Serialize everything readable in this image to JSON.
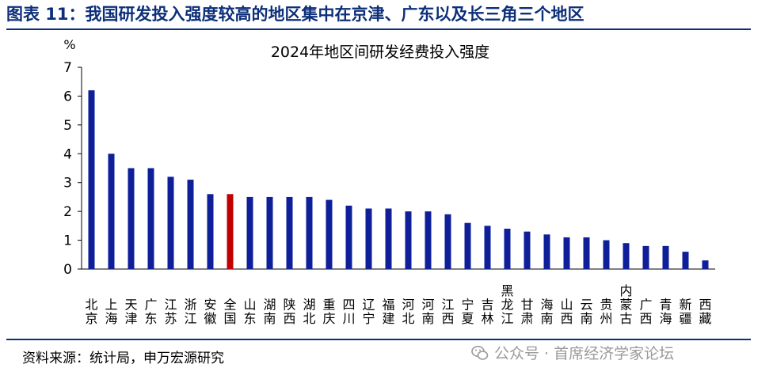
{
  "figure_title": "图表 11：我国研发投入强度较高的地区集中在京津、广东以及长三角三个地区",
  "source": "资料来源：统计局，申万宏源研究",
  "watermark": "公众号 · 首席经济学家论坛",
  "watermark_icon": "wechat-icon",
  "colors": {
    "bar": "#0e1f99",
    "highlight": "#c00000",
    "title_blue": "#0d2f7a"
  },
  "chart_data": {
    "type": "bar",
    "title": "2024年地区间研发经费投入强度",
    "ylabel": "%",
    "ylim": [
      0,
      7
    ],
    "yticks": [
      0,
      1,
      2,
      3,
      4,
      5,
      6,
      7
    ],
    "grid": false,
    "highlight_category": "全国",
    "categories": [
      "北京",
      "上海",
      "天津",
      "广东",
      "江苏",
      "浙江",
      "安徽",
      "全国",
      "山东",
      "湖南",
      "陕西",
      "湖北",
      "重庆",
      "四川",
      "辽宁",
      "福建",
      "河北",
      "河南",
      "江西",
      "宁夏",
      "吉林",
      "黑龙江",
      "甘肃",
      "海南",
      "山西",
      "云南",
      "贵州",
      "内蒙古",
      "广西",
      "青海",
      "新疆",
      "西藏"
    ],
    "values": [
      6.2,
      4.0,
      3.5,
      3.5,
      3.2,
      3.1,
      2.6,
      2.6,
      2.5,
      2.5,
      2.5,
      2.5,
      2.4,
      2.2,
      2.1,
      2.1,
      2.0,
      2.0,
      1.9,
      1.6,
      1.5,
      1.4,
      1.3,
      1.2,
      1.1,
      1.1,
      1.0,
      0.9,
      0.8,
      0.8,
      0.6,
      0.3
    ]
  }
}
